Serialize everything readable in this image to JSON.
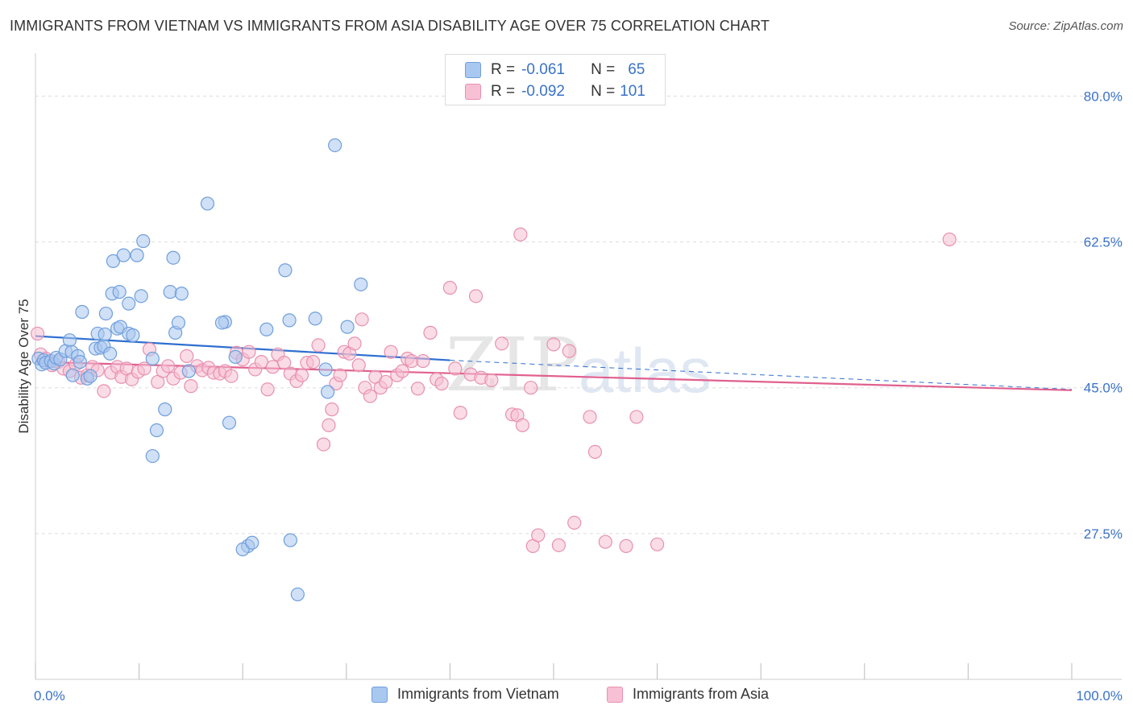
{
  "title": "IMMIGRANTS FROM VIETNAM VS IMMIGRANTS FROM ASIA DISABILITY AGE OVER 75 CORRELATION CHART",
  "source": "Source: ZipAtlas.com",
  "watermark": {
    "zip": "ZIP",
    "atlas": "atlas"
  },
  "legend_stats": [
    {
      "r_label": "R =",
      "r_value": "-0.061",
      "n_label": "N =",
      "n_value": "65",
      "color": "#a8c8f0",
      "border": "#6f9fdc"
    },
    {
      "r_label": "R =",
      "r_value": "-0.092",
      "n_label": "N =",
      "n_value": "101",
      "color": "#f8c0d4",
      "border": "#e890b0"
    }
  ],
  "colors": {
    "blue_fill": "#a9c6ee",
    "blue_stroke": "#6f9fdc",
    "blue_line": "#2f6fd0",
    "pink_fill": "#f6bfd2",
    "pink_stroke": "#e890b0",
    "pink_line": "#e0608e",
    "tick_label": "#3a72c8",
    "grid": "#dddddd"
  },
  "chart_data": {
    "type": "scatter",
    "xlabel": "",
    "ylabel": "Disability Age Over 75",
    "xlim": [
      0,
      100
    ],
    "ylim": [
      10,
      84
    ],
    "y_ticks": [
      27.5,
      45.0,
      62.5,
      80.0
    ],
    "y_tick_labels": [
      "27.5%",
      "45.0%",
      "62.5%",
      "80.0%"
    ],
    "x_tick_labels": [
      "0.0%",
      "100.0%"
    ],
    "grid": true,
    "series": [
      {
        "name": "Immigrants from Vietnam",
        "trend": {
          "x0": 0,
          "y0": 51.2,
          "x1": 40,
          "y1": 48.3,
          "dash_to_x": 100,
          "dash_to_y": 44.8
        },
        "points": [
          [
            0.3,
            48.5
          ],
          [
            0.6,
            47.8
          ],
          [
            0.8,
            48.3
          ],
          [
            1.0,
            48.0
          ],
          [
            1.5,
            48.2
          ],
          [
            1.8,
            47.9
          ],
          [
            2.0,
            48.6
          ],
          [
            2.4,
            48.4
          ],
          [
            2.9,
            49.4
          ],
          [
            3.3,
            50.7
          ],
          [
            3.5,
            49.3
          ],
          [
            3.6,
            46.5
          ],
          [
            4.1,
            48.8
          ],
          [
            4.3,
            48.1
          ],
          [
            4.5,
            54.1
          ],
          [
            5.0,
            46.1
          ],
          [
            5.3,
            46.4
          ],
          [
            5.8,
            49.7
          ],
          [
            6.0,
            51.5
          ],
          [
            6.3,
            49.8
          ],
          [
            6.6,
            50.0
          ],
          [
            6.7,
            51.4
          ],
          [
            6.8,
            53.9
          ],
          [
            7.2,
            49.1
          ],
          [
            7.4,
            56.3
          ],
          [
            7.5,
            60.2
          ],
          [
            7.9,
            52.1
          ],
          [
            8.1,
            56.5
          ],
          [
            8.2,
            52.3
          ],
          [
            8.5,
            60.9
          ],
          [
            9.0,
            55.1
          ],
          [
            9.0,
            51.5
          ],
          [
            9.4,
            51.3
          ],
          [
            9.8,
            60.9
          ],
          [
            10.2,
            56.0
          ],
          [
            10.4,
            62.6
          ],
          [
            11.3,
            48.5
          ],
          [
            11.7,
            39.9
          ],
          [
            11.3,
            36.8
          ],
          [
            12.5,
            42.4
          ],
          [
            13.0,
            56.5
          ],
          [
            13.3,
            60.6
          ],
          [
            13.5,
            51.6
          ],
          [
            13.8,
            52.8
          ],
          [
            14.1,
            56.3
          ],
          [
            14.8,
            47.0
          ],
          [
            16.6,
            67.1
          ],
          [
            18.3,
            52.9
          ],
          [
            18.7,
            40.8
          ],
          [
            19.3,
            48.7
          ],
          [
            20.5,
            26.0
          ],
          [
            22.3,
            52.0
          ],
          [
            24.1,
            59.1
          ],
          [
            24.5,
            53.1
          ],
          [
            24.6,
            26.7
          ],
          [
            25.3,
            20.2
          ],
          [
            27.0,
            53.3
          ],
          [
            28.0,
            47.2
          ],
          [
            28.2,
            44.5
          ],
          [
            28.9,
            74.1
          ],
          [
            30.1,
            52.3
          ],
          [
            31.4,
            57.4
          ],
          [
            20.0,
            25.6
          ],
          [
            18.0,
            52.8
          ],
          [
            20.9,
            26.4
          ]
        ]
      },
      {
        "name": "Immigrants from Asia",
        "trend": {
          "x0": 0,
          "y0": 48.1,
          "x1": 100,
          "y1": 44.7
        },
        "points": [
          [
            0.2,
            51.5
          ],
          [
            0.5,
            49.0
          ],
          [
            1.0,
            48.5
          ],
          [
            1.6,
            47.7
          ],
          [
            2.2,
            48.1
          ],
          [
            2.7,
            47.3
          ],
          [
            3.3,
            47.0
          ],
          [
            3.9,
            47.8
          ],
          [
            4.4,
            46.2
          ],
          [
            5.0,
            46.5
          ],
          [
            5.5,
            47.5
          ],
          [
            6.0,
            47.1
          ],
          [
            6.6,
            44.6
          ],
          [
            7.3,
            46.8
          ],
          [
            7.9,
            47.5
          ],
          [
            8.3,
            46.3
          ],
          [
            8.8,
            47.3
          ],
          [
            9.3,
            46.0
          ],
          [
            9.9,
            46.9
          ],
          [
            10.5,
            47.3
          ],
          [
            11.0,
            49.6
          ],
          [
            11.8,
            45.7
          ],
          [
            12.3,
            47.0
          ],
          [
            12.8,
            47.6
          ],
          [
            13.3,
            46.1
          ],
          [
            14.0,
            46.8
          ],
          [
            14.6,
            48.8
          ],
          [
            15.0,
            45.2
          ],
          [
            15.6,
            47.6
          ],
          [
            16.1,
            47.1
          ],
          [
            16.7,
            47.4
          ],
          [
            17.2,
            46.8
          ],
          [
            17.8,
            46.7
          ],
          [
            18.3,
            47.0
          ],
          [
            18.9,
            46.4
          ],
          [
            19.4,
            49.2
          ],
          [
            20.0,
            48.4
          ],
          [
            20.6,
            49.3
          ],
          [
            21.2,
            47.2
          ],
          [
            21.8,
            48.1
          ],
          [
            22.4,
            44.8
          ],
          [
            22.9,
            47.5
          ],
          [
            23.4,
            49.0
          ],
          [
            24.0,
            48.0
          ],
          [
            24.6,
            46.7
          ],
          [
            25.2,
            45.8
          ],
          [
            25.7,
            46.5
          ],
          [
            26.2,
            48.0
          ],
          [
            26.8,
            48.1
          ],
          [
            27.3,
            50.1
          ],
          [
            27.8,
            38.2
          ],
          [
            28.3,
            40.5
          ],
          [
            28.6,
            42.4
          ],
          [
            29.0,
            45.5
          ],
          [
            29.4,
            46.5
          ],
          [
            29.8,
            49.3
          ],
          [
            30.3,
            49.1
          ],
          [
            30.8,
            50.3
          ],
          [
            31.2,
            47.7
          ],
          [
            31.5,
            53.2
          ],
          [
            31.8,
            45.0
          ],
          [
            32.3,
            44.0
          ],
          [
            32.8,
            46.3
          ],
          [
            33.3,
            45.0
          ],
          [
            33.8,
            45.7
          ],
          [
            34.3,
            49.3
          ],
          [
            34.9,
            46.5
          ],
          [
            35.4,
            47.0
          ],
          [
            35.9,
            48.5
          ],
          [
            36.3,
            48.2
          ],
          [
            36.9,
            44.9
          ],
          [
            37.4,
            48.2
          ],
          [
            38.1,
            51.6
          ],
          [
            38.7,
            46.0
          ],
          [
            39.2,
            45.5
          ],
          [
            40.0,
            57.0
          ],
          [
            40.5,
            47.3
          ],
          [
            41.0,
            42.0
          ],
          [
            42.0,
            46.6
          ],
          [
            42.5,
            56.0
          ],
          [
            43.0,
            46.2
          ],
          [
            44.0,
            45.9
          ],
          [
            45.0,
            50.3
          ],
          [
            46.0,
            41.8
          ],
          [
            46.5,
            41.7
          ],
          [
            46.8,
            63.4
          ],
          [
            47.0,
            40.5
          ],
          [
            47.8,
            45.0
          ],
          [
            48.0,
            26.0
          ],
          [
            48.5,
            27.3
          ],
          [
            50.0,
            50.2
          ],
          [
            50.5,
            26.1
          ],
          [
            51.5,
            49.4
          ],
          [
            52.0,
            28.8
          ],
          [
            53.5,
            41.5
          ],
          [
            54.0,
            37.3
          ],
          [
            55.0,
            26.5
          ],
          [
            57.0,
            26.0
          ],
          [
            58.0,
            41.5
          ],
          [
            88.2,
            62.8
          ],
          [
            60.0,
            26.2
          ]
        ]
      }
    ]
  },
  "bottom_legend": [
    "Immigrants from Vietnam",
    "Immigrants from Asia"
  ]
}
